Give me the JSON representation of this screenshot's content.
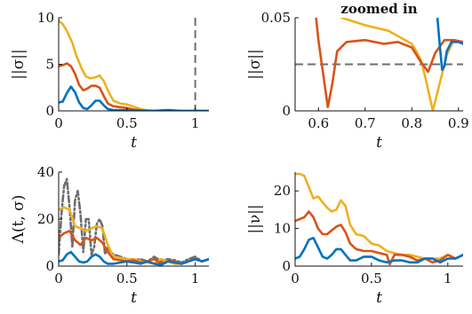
{
  "colors": {
    "blue": "#0072BD",
    "red": "#D95319",
    "yellow": "#EDB120",
    "gray": "#6e6e6e"
  },
  "chart_data": [
    {
      "id": "top-left",
      "type": "line",
      "title": "",
      "xlabel": "t",
      "ylabel": "||σ||",
      "xlim": [
        0,
        1.1
      ],
      "ylim": [
        0,
        10
      ],
      "xticks": [
        0,
        0.5,
        1
      ],
      "yticks": [
        0,
        5,
        10
      ],
      "grid": false,
      "vlines": [
        {
          "x": 1,
          "style": "dashed",
          "color": "gray"
        }
      ],
      "series": [
        {
          "color": "yellow",
          "x": [
            0,
            0.03,
            0.06,
            0.1,
            0.13,
            0.17,
            0.2,
            0.23,
            0.27,
            0.3,
            0.33,
            0.37,
            0.4,
            0.45,
            0.5,
            0.55,
            0.6,
            0.65,
            0.7,
            0.8,
            1.1
          ],
          "y": [
            9.7,
            9.3,
            8.6,
            7.3,
            5.9,
            4.5,
            3.7,
            3.5,
            3.6,
            3.8,
            3.2,
            1.9,
            1.1,
            0.8,
            0.7,
            0.45,
            0.2,
            0.06,
            0,
            0,
            0
          ]
        },
        {
          "color": "red",
          "x": [
            0,
            0.03,
            0.06,
            0.09,
            0.12,
            0.15,
            0.18,
            0.21,
            0.24,
            0.27,
            0.3,
            0.33,
            0.36,
            0.4,
            0.45,
            0.5,
            0.55,
            0.6,
            0.65,
            1.1
          ],
          "y": [
            4.8,
            4.9,
            5.1,
            4.8,
            4.0,
            2.8,
            2.2,
            2.4,
            2.7,
            2.7,
            2.5,
            1.6,
            0.8,
            0.5,
            0.4,
            0.3,
            0.15,
            0.05,
            0,
            0
          ]
        },
        {
          "color": "blue",
          "x": [
            0,
            0.03,
            0.06,
            0.09,
            0.12,
            0.15,
            0.18,
            0.21,
            0.24,
            0.27,
            0.3,
            0.33,
            0.36,
            0.4,
            0.45,
            0.5,
            0.55,
            0.6,
            0.7,
            0.8,
            0.9,
            1.1
          ],
          "y": [
            0.9,
            1.0,
            1.9,
            2.6,
            2.0,
            0.9,
            0.3,
            0.2,
            0.6,
            1.1,
            1.1,
            0.6,
            0.2,
            0.1,
            0.08,
            0.06,
            0.04,
            0.03,
            0.01,
            0.1,
            0,
            0
          ]
        }
      ]
    },
    {
      "id": "top-right",
      "type": "line",
      "title": "zoomed in",
      "xlabel": "t",
      "ylabel": "||σ||",
      "xlim": [
        0.55,
        0.91
      ],
      "ylim": [
        0,
        0.05
      ],
      "xticks": [
        0.6,
        0.7,
        0.8,
        0.9
      ],
      "yticks": [
        0,
        0.05
      ],
      "grid": false,
      "hlines": [
        {
          "y": 0.025,
          "style": "dashed",
          "color": "gray"
        }
      ],
      "series": [
        {
          "color": "yellow",
          "x": [
            0.65,
            0.7,
            0.75,
            0.8,
            0.81,
            0.82,
            0.83,
            0.845,
            0.86,
            0.875,
            0.89,
            0.91
          ],
          "y": [
            0.05,
            0.046,
            0.043,
            0.036,
            0.032,
            0.027,
            0.017,
            0.0,
            0.015,
            0.03,
            0.038,
            0.037
          ]
        },
        {
          "color": "red",
          "x": [
            0.595,
            0.6,
            0.61,
            0.62,
            0.63,
            0.64,
            0.66,
            0.7,
            0.74,
            0.77,
            0.8,
            0.82,
            0.835,
            0.85,
            0.87,
            0.89,
            0.91
          ],
          "y": [
            0.05,
            0.038,
            0.02,
            0.002,
            0.015,
            0.032,
            0.037,
            0.038,
            0.036,
            0.037,
            0.034,
            0.026,
            0.021,
            0.031,
            0.038,
            0.038,
            0.037
          ]
        },
        {
          "color": "blue",
          "x": [
            0.855,
            0.86,
            0.865,
            0.87,
            0.875,
            0.885,
            0.9,
            0.91
          ],
          "y": [
            0.05,
            0.035,
            0.022,
            0.024,
            0.032,
            0.037,
            0.037,
            0.036
          ]
        }
      ]
    },
    {
      "id": "bottom-left",
      "type": "line",
      "title": "",
      "xlabel": "t",
      "ylabel": "Λ(t, σ)",
      "xlim": [
        0,
        1.1
      ],
      "ylim": [
        0,
        40
      ],
      "xticks": [
        0,
        0.5,
        1
      ],
      "yticks": [
        0,
        20,
        40
      ],
      "grid": false,
      "series": [
        {
          "color": "gray",
          "style": "dashdot",
          "x": [
            0,
            0.02,
            0.04,
            0.06,
            0.08,
            0.1,
            0.12,
            0.14,
            0.16,
            0.18,
            0.2,
            0.22,
            0.24,
            0.26,
            0.28,
            0.3,
            0.32,
            0.34,
            0.36,
            0.38,
            0.4,
            0.45,
            0.5,
            0.55,
            0.6,
            0.65,
            0.7,
            0.75,
            0.8,
            0.85,
            0.9,
            0.95,
            1.0,
            1.05,
            1.1
          ],
          "y": [
            5,
            22,
            34,
            37,
            25,
            8,
            28,
            32,
            22,
            6,
            20,
            20,
            5,
            8,
            18,
            20,
            17,
            5,
            8,
            6,
            5,
            4,
            3,
            2.5,
            3,
            2,
            4,
            2,
            3,
            2.5,
            1.5,
            3,
            4,
            2,
            3
          ]
        },
        {
          "color": "yellow",
          "x": [
            0,
            0.04,
            0.08,
            0.12,
            0.16,
            0.2,
            0.24,
            0.28,
            0.32,
            0.36,
            0.4,
            0.45,
            0.5,
            0.55,
            0.6,
            0.65,
            0.7,
            0.75,
            0.8,
            0.85,
            0.9,
            0.95,
            1.0,
            1.05,
            1.1
          ],
          "y": [
            24,
            25,
            24,
            17,
            16,
            15,
            16,
            17,
            16,
            9,
            4,
            3.5,
            3,
            3,
            2,
            1.5,
            1,
            3,
            2,
            1,
            1,
            2,
            3,
            2,
            3
          ]
        },
        {
          "color": "red",
          "x": [
            0,
            0.04,
            0.08,
            0.12,
            0.16,
            0.2,
            0.24,
            0.28,
            0.32,
            0.36,
            0.4,
            0.45,
            0.5,
            0.55,
            0.6,
            0.65,
            0.7,
            0.75,
            0.8,
            0.85,
            0.9,
            0.95,
            1.0,
            1.05,
            1.1
          ],
          "y": [
            12,
            14,
            15,
            11,
            9,
            12,
            11,
            12,
            10,
            6,
            3,
            2.5,
            2,
            2.5,
            1.5,
            2,
            3,
            1,
            2,
            2,
            1,
            2,
            3,
            2,
            3
          ]
        },
        {
          "color": "blue",
          "x": [
            0,
            0.03,
            0.06,
            0.09,
            0.12,
            0.15,
            0.18,
            0.21,
            0.24,
            0.27,
            0.3,
            0.33,
            0.36,
            0.4,
            0.45,
            0.5,
            0.55,
            0.6,
            0.65,
            0.7,
            0.75,
            0.8,
            0.85,
            0.9,
            0.95,
            1.0,
            1.05,
            1.1
          ],
          "y": [
            2,
            2.5,
            5,
            6,
            4,
            2,
            1.5,
            2,
            4,
            5,
            4,
            2,
            1,
            1,
            1.5,
            2,
            1.5,
            1,
            2,
            1,
            0.5,
            2,
            1.5,
            1,
            2,
            3,
            2,
            3
          ]
        }
      ]
    },
    {
      "id": "bottom-right",
      "type": "line",
      "title": "",
      "xlabel": "t",
      "ylabel": "||ν||",
      "xlim": [
        0,
        1.1
      ],
      "ylim": [
        0,
        25
      ],
      "xticks": [
        0,
        0.5,
        1
      ],
      "yticks": [
        0,
        10,
        20
      ],
      "grid": false,
      "series": [
        {
          "color": "yellow",
          "x": [
            0,
            0.03,
            0.06,
            0.09,
            0.12,
            0.15,
            0.18,
            0.21,
            0.24,
            0.27,
            0.3,
            0.33,
            0.36,
            0.4,
            0.45,
            0.5,
            0.55,
            0.6,
            0.65,
            0.7,
            0.75,
            0.8,
            0.85,
            0.9,
            0.95,
            1.0,
            1.05,
            1.1
          ],
          "y": [
            24.5,
            24.5,
            24,
            21,
            18,
            18.5,
            17,
            15.5,
            14.5,
            15,
            17.5,
            16,
            11,
            8.5,
            8,
            6,
            5.5,
            4,
            3.5,
            3,
            3,
            2.5,
            2,
            2,
            2,
            3,
            2,
            3
          ]
        },
        {
          "color": "red",
          "x": [
            0,
            0.03,
            0.06,
            0.09,
            0.12,
            0.15,
            0.18,
            0.21,
            0.24,
            0.27,
            0.3,
            0.33,
            0.36,
            0.4,
            0.45,
            0.5,
            0.55,
            0.6,
            0.62,
            0.65,
            0.7,
            0.75,
            0.8,
            0.85,
            0.9,
            0.95,
            1.0,
            1.05,
            1.1
          ],
          "y": [
            12,
            12.5,
            13,
            14.5,
            13,
            10,
            8.5,
            8.5,
            9.5,
            10.5,
            11,
            9,
            6,
            4.5,
            4,
            4,
            3.5,
            3,
            0.5,
            3,
            3,
            2.5,
            1.5,
            2,
            1,
            1.5,
            3,
            2,
            3
          ]
        },
        {
          "color": "blue",
          "x": [
            0,
            0.03,
            0.06,
            0.09,
            0.12,
            0.15,
            0.18,
            0.21,
            0.24,
            0.27,
            0.3,
            0.33,
            0.36,
            0.4,
            0.45,
            0.5,
            0.55,
            0.6,
            0.65,
            0.7,
            0.75,
            0.8,
            0.85,
            0.9,
            0.95,
            1.0,
            1.05,
            1.1
          ],
          "y": [
            2,
            2.5,
            4.5,
            7,
            7.5,
            5,
            2.5,
            2,
            3,
            4.5,
            4.5,
            3,
            1.5,
            1.5,
            2.5,
            2.5,
            1.5,
            1,
            1.5,
            1.5,
            1,
            1,
            2,
            2,
            1,
            2,
            2,
            3
          ]
        }
      ]
    }
  ]
}
